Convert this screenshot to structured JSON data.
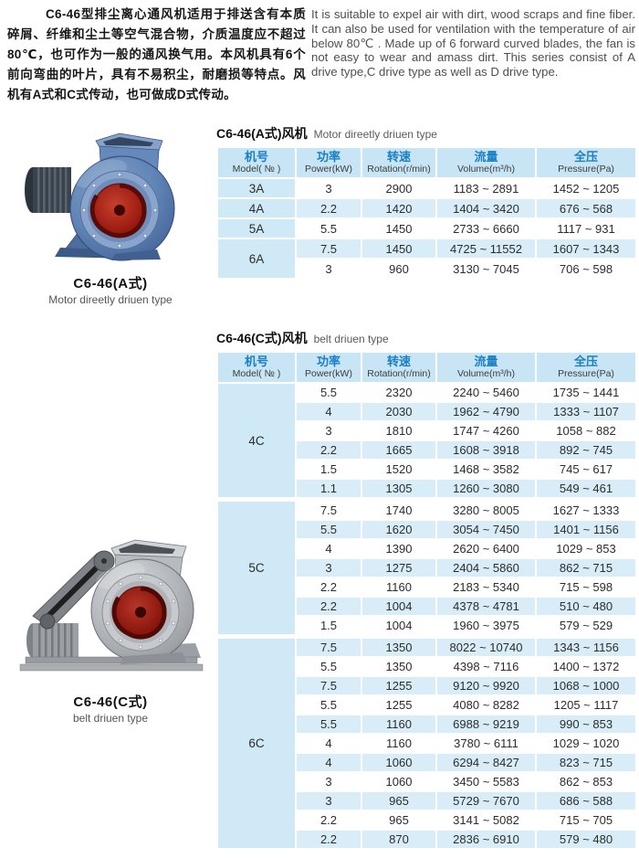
{
  "intro": {
    "zh": "C6-46型排尘离心通风机适用于排送含有本质碎屑、纤维和尘土等空气混合物，介质温度应不超过80℃，也可作为一般的通风换气用。本风机具有6个前向弯曲的叶片，具有不易积尘，耐磨损等特点。风机有A式和C式传动，也可做成D式传动。",
    "en": "It is suitable to expel air with dirt, wood scraps and fine fiber. It can also be used for ventilation with the temperature of air below 80℃ . Made up of 6 forward curved blades, the fan is not easy to wear and amass dirt. This series consist of A drive type,C drive type as well as D drive type."
  },
  "figures": [
    {
      "caption": "C6-46(A式)",
      "subcaption": "Motor direetly driuen type"
    },
    {
      "caption": "C6-46(C式)",
      "subcaption": "belt driuen type"
    }
  ],
  "tables": [
    {
      "title_zh": "C6-46(A式)风机",
      "title_en": "Motor direetly driuen type",
      "headers": [
        {
          "zh": "机号",
          "en": "Model( № )"
        },
        {
          "zh": "功率",
          "en": "Power(kW)"
        },
        {
          "zh": "转速",
          "en": "Rotation(r/min)"
        },
        {
          "zh": "流量",
          "en": "Volume(m³/h)"
        },
        {
          "zh": "全压",
          "en": "Pressure(Pa)"
        }
      ],
      "groups": [
        {
          "model": "3A",
          "rows": [
            [
              "3",
              "2900",
              "1183 ~ 2891",
              "1452 ~ 1205"
            ]
          ]
        },
        {
          "model": "4A",
          "rows": [
            [
              "2.2",
              "1420",
              "1404 ~ 3420",
              "676 ~ 568"
            ]
          ]
        },
        {
          "model": "5A",
          "rows": [
            [
              "5.5",
              "1450",
              "2733 ~ 6660",
              "1117 ~ 931"
            ]
          ]
        },
        {
          "model": "6A",
          "rows": [
            [
              "7.5",
              "1450",
              "4725 ~ 11552",
              "1607 ~ 1343"
            ],
            [
              "3",
              "960",
              "3130 ~ 7045",
              "706 ~ 598"
            ]
          ]
        }
      ]
    },
    {
      "title_zh": "C6-46(C式)风机",
      "title_en": "belt driuen type",
      "headers": [
        {
          "zh": "机号",
          "en": "Model( № )"
        },
        {
          "zh": "功率",
          "en": "Power(kW)"
        },
        {
          "zh": "转速",
          "en": "Rotation(r/min)"
        },
        {
          "zh": "流量",
          "en": "Volume(m³/h)"
        },
        {
          "zh": "全压",
          "en": "Pressure(Pa)"
        }
      ],
      "groups": [
        {
          "model": "4C",
          "rows": [
            [
              "5.5",
              "2320",
              "2240 ~ 5460",
              "1735 ~ 1441"
            ],
            [
              "4",
              "2030",
              "1962 ~ 4790",
              "1333 ~ 1107"
            ],
            [
              "3",
              "1810",
              "1747 ~ 4260",
              "1058 ~ 882"
            ],
            [
              "2.2",
              "1665",
              "1608 ~ 3918",
              "892 ~ 745"
            ],
            [
              "1.5",
              "1520",
              "1468 ~ 3582",
              "745 ~ 617"
            ],
            [
              "1.1",
              "1305",
              "1260 ~ 3080",
              "549 ~ 461"
            ]
          ]
        },
        {
          "model": "5C",
          "rows": [
            [
              "7.5",
              "1740",
              "3280 ~ 8005",
              "1627 ~ 1333"
            ],
            [
              "5.5",
              "1620",
              "3054 ~ 7450",
              "1401 ~ 1156"
            ],
            [
              "4",
              "1390",
              "2620 ~ 6400",
              "1029 ~ 853"
            ],
            [
              "3",
              "1275",
              "2404 ~ 5860",
              "862 ~ 715"
            ],
            [
              "2.2",
              "1160",
              "2183 ~ 5340",
              "715 ~ 598"
            ],
            [
              "2.2",
              "1004",
              "4378 ~ 4781",
              "510 ~ 480"
            ],
            [
              "1.5",
              "1004",
              "1960 ~ 3975",
              "579 ~ 529"
            ]
          ]
        },
        {
          "model": "6C",
          "rows": [
            [
              "7.5",
              "1350",
              "8022 ~ 10740",
              "1343 ~ 1156"
            ],
            [
              "5.5",
              "1350",
              "4398 ~ 7116",
              "1400 ~ 1372"
            ],
            [
              "7.5",
              "1255",
              "9120 ~ 9920",
              "1068 ~ 1000"
            ],
            [
              "5.5",
              "1255",
              "4080 ~ 8282",
              "1205 ~ 1117"
            ],
            [
              "5.5",
              "1160",
              "6988 ~ 9219",
              "990 ~ 853"
            ],
            [
              "4",
              "1160",
              "3780 ~ 6111",
              "1029 ~ 1020"
            ],
            [
              "4",
              "1060",
              "6294 ~ 8427",
              "823 ~ 715"
            ],
            [
              "3",
              "1060",
              "3450 ~ 5583",
              "862 ~ 853"
            ],
            [
              "3",
              "965",
              "5729 ~ 7670",
              "686 ~ 588"
            ],
            [
              "2.2",
              "965",
              "3141 ~ 5082",
              "715 ~ 705"
            ],
            [
              "2.2",
              "870",
              "2836 ~ 6910",
              "579 ~ 480"
            ]
          ]
        }
      ]
    }
  ],
  "colors": {
    "table_header_bg": "#c7e5f4",
    "table_row_blue": "#d9edf9",
    "table_model_bg": "#cfe9f6",
    "header_text_blue": "#1a7ec5",
    "fan_a_body_blue": "#5f84b5",
    "fan_c_body_gray": "#b3b7bb",
    "inlet_red": "#a5251d"
  }
}
